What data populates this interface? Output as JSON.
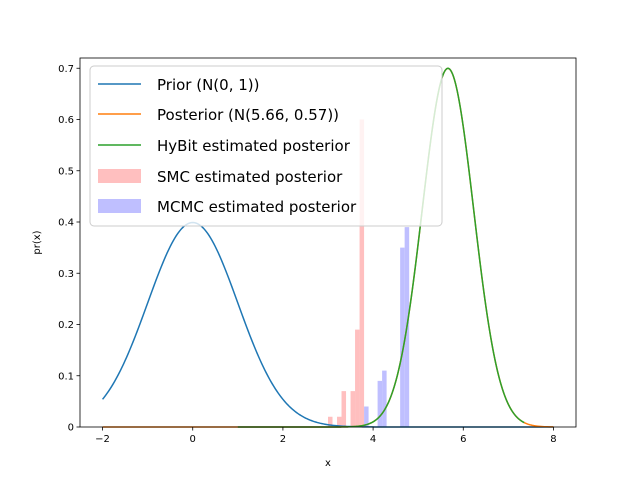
{
  "chart_data": {
    "type": "line",
    "title": "",
    "xlabel": "x",
    "ylabel": "pr(x)",
    "xlim": [
      -2.5,
      8.5
    ],
    "ylim": [
      0,
      0.72
    ],
    "xticks": [
      -2,
      0,
      2,
      4,
      6,
      8
    ],
    "yticks": [
      0,
      0.1,
      0.2,
      0.3,
      0.4,
      0.5,
      0.6,
      0.7
    ],
    "legend_position": "top-left",
    "series": [
      {
        "name": "Prior (N(0, 1))",
        "kind": "curve",
        "color": "#1f77b4",
        "mean": 0,
        "sd": 1,
        "x_range": [
          -2,
          8
        ]
      },
      {
        "name": "Posterior (N(5.66, 0.57))",
        "kind": "curve",
        "color": "#ff7f0e",
        "mean": 5.66,
        "sd": 0.57,
        "x_range": [
          -2,
          8
        ]
      },
      {
        "name": "HyBit estimated posterior",
        "kind": "curve",
        "color": "#2ca02c",
        "mean": 5.66,
        "sd": 0.57,
        "x_range": [
          1,
          7.35
        ]
      },
      {
        "name": "SMC estimated posterior",
        "kind": "bars",
        "color": "#ffbfbf",
        "bins": [
          {
            "x0": 3.0,
            "x1": 3.1,
            "value": 0.02
          },
          {
            "x0": 3.2,
            "x1": 3.3,
            "value": 0.02
          },
          {
            "x0": 3.3,
            "x1": 3.4,
            "value": 0.07
          },
          {
            "x0": 3.5,
            "x1": 3.6,
            "value": 0.07
          },
          {
            "x0": 3.6,
            "x1": 3.7,
            "value": 0.19
          },
          {
            "x0": 3.7,
            "x1": 3.8,
            "value": 0.6
          }
        ]
      },
      {
        "name": "MCMC estimated posterior",
        "kind": "bars",
        "color": "#bfbfff",
        "bins": [
          {
            "x0": 3.8,
            "x1": 3.9,
            "value": 0.04
          },
          {
            "x0": 4.1,
            "x1": 4.2,
            "value": 0.09
          },
          {
            "x0": 4.2,
            "x1": 4.3,
            "value": 0.11
          },
          {
            "x0": 4.6,
            "x1": 4.7,
            "value": 0.35
          },
          {
            "x0": 4.7,
            "x1": 4.8,
            "value": 0.39
          }
        ]
      }
    ]
  }
}
